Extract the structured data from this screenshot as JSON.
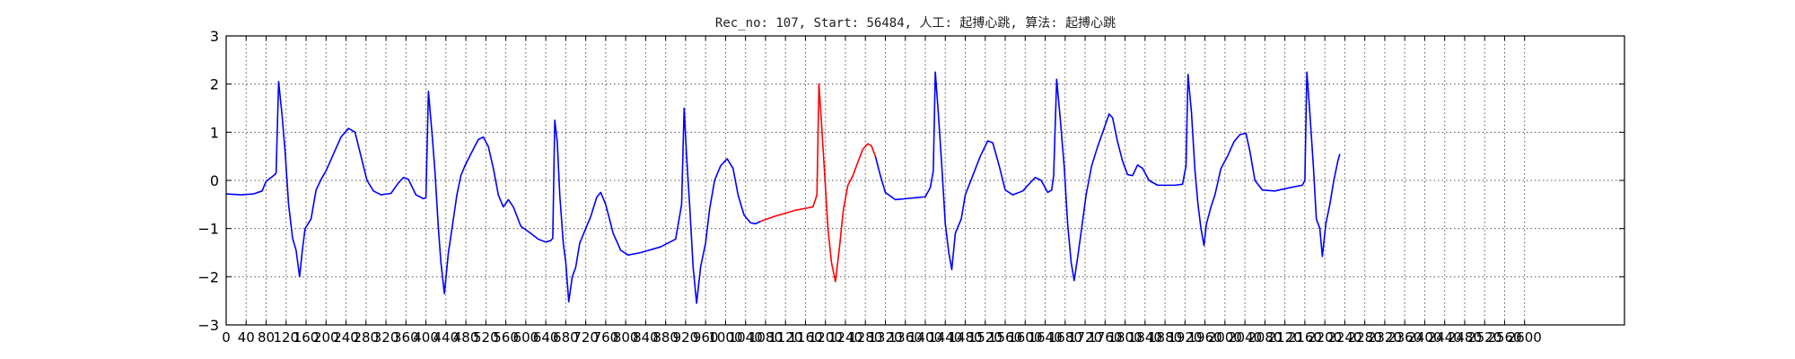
{
  "chart_data": {
    "type": "line",
    "title": "Rec_no: 107, Start: 56484, 人工: 起搏心跳, 算法: 起搏心跳",
    "xlabel": "",
    "ylabel": "",
    "xlim": [
      0,
      2800
    ],
    "ylim": [
      -3,
      3
    ],
    "grid": true,
    "yticks": [
      3,
      2,
      1,
      0,
      -1,
      -2,
      -3
    ],
    "ytick_labels": [
      "3",
      "2",
      "1",
      "0",
      "−1",
      "−2",
      "−3"
    ],
    "xtick_step": 40,
    "xtick_max": 2600,
    "colors": {
      "normal": "#0000ff",
      "highlight": "#ff0000",
      "axis": "#000000"
    },
    "series": [
      {
        "color": "normal",
        "points": [
          [
            0,
            -0.28
          ],
          [
            30,
            -0.3
          ],
          [
            55,
            -0.28
          ],
          [
            72,
            -0.22
          ],
          [
            80,
            -0.02
          ],
          [
            90,
            0.06
          ],
          [
            95,
            0.1
          ],
          [
            100,
            0.15
          ],
          [
            105,
            2.05
          ],
          [
            112,
            1.35
          ],
          [
            118,
            0.6
          ],
          [
            125,
            -0.5
          ],
          [
            133,
            -1.2
          ],
          [
            140,
            -1.45
          ],
          [
            147,
            -2.0
          ],
          [
            152,
            -1.5
          ],
          [
            158,
            -1.0
          ],
          [
            170,
            -0.8
          ],
          [
            180,
            -0.2
          ],
          [
            190,
            0.02
          ],
          [
            200,
            0.2
          ],
          [
            215,
            0.55
          ],
          [
            230,
            0.9
          ],
          [
            245,
            1.08
          ],
          [
            258,
            1.0
          ],
          [
            270,
            0.5
          ],
          [
            282,
            0.0
          ],
          [
            295,
            -0.22
          ],
          [
            310,
            -0.3
          ],
          [
            330,
            -0.27
          ],
          [
            345,
            -0.05
          ],
          [
            355,
            0.06
          ],
          [
            365,
            0.02
          ],
          [
            380,
            -0.3
          ],
          [
            395,
            -0.38
          ],
          [
            400,
            -0.36
          ],
          [
            405,
            1.85
          ],
          [
            412,
            1.0
          ],
          [
            418,
            0.2
          ],
          [
            425,
            -1.0
          ],
          [
            430,
            -1.7
          ],
          [
            437,
            -2.35
          ],
          [
            445,
            -1.5
          ],
          [
            455,
            -0.8
          ],
          [
            462,
            -0.3
          ],
          [
            470,
            0.1
          ],
          [
            478,
            0.3
          ],
          [
            490,
            0.55
          ],
          [
            505,
            0.85
          ],
          [
            515,
            0.9
          ],
          [
            525,
            0.7
          ],
          [
            535,
            0.25
          ],
          [
            545,
            -0.3
          ],
          [
            555,
            -0.55
          ],
          [
            565,
            -0.4
          ],
          [
            575,
            -0.55
          ],
          [
            590,
            -0.95
          ],
          [
            610,
            -1.1
          ],
          [
            625,
            -1.22
          ],
          [
            640,
            -1.28
          ],
          [
            650,
            -1.25
          ],
          [
            654,
            -1.2
          ],
          [
            658,
            1.25
          ],
          [
            663,
            0.8
          ],
          [
            668,
            -0.3
          ],
          [
            675,
            -1.3
          ],
          [
            680,
            -1.7
          ],
          [
            686,
            -2.52
          ],
          [
            693,
            -2.0
          ],
          [
            700,
            -1.8
          ],
          [
            708,
            -1.3
          ],
          [
            718,
            -1.05
          ],
          [
            730,
            -0.75
          ],
          [
            742,
            -0.35
          ],
          [
            750,
            -0.25
          ],
          [
            760,
            -0.5
          ],
          [
            775,
            -1.1
          ],
          [
            790,
            -1.45
          ],
          [
            805,
            -1.55
          ],
          [
            830,
            -1.5
          ],
          [
            870,
            -1.38
          ],
          [
            900,
            -1.22
          ],
          [
            912,
            -0.5
          ],
          [
            917,
            1.5
          ],
          [
            922,
            0.5
          ],
          [
            928,
            -0.5
          ],
          [
            935,
            -1.8
          ],
          [
            942,
            -2.55
          ],
          [
            950,
            -1.8
          ],
          [
            960,
            -1.3
          ],
          [
            968,
            -0.6
          ],
          [
            978,
            0.0
          ],
          [
            990,
            0.3
          ],
          [
            1003,
            0.45
          ],
          [
            1015,
            0.25
          ],
          [
            1025,
            -0.3
          ],
          [
            1037,
            -0.72
          ],
          [
            1050,
            -0.88
          ],
          [
            1060,
            -0.9
          ],
          [
            1068,
            -0.86
          ],
          [
            1070,
            -0.85
          ]
        ]
      },
      {
        "color": "highlight",
        "points": [
          [
            1070,
            -0.85
          ],
          [
            1100,
            -0.74
          ],
          [
            1140,
            -0.62
          ],
          [
            1175,
            -0.55
          ],
          [
            1183,
            -0.3
          ],
          [
            1187,
            2.0
          ],
          [
            1192,
            1.2
          ],
          [
            1198,
            0.2
          ],
          [
            1205,
            -1.0
          ],
          [
            1212,
            -1.7
          ],
          [
            1220,
            -2.1
          ],
          [
            1228,
            -1.4
          ],
          [
            1236,
            -0.6
          ],
          [
            1245,
            -0.1
          ],
          [
            1255,
            0.1
          ],
          [
            1265,
            0.38
          ],
          [
            1275,
            0.65
          ],
          [
            1285,
            0.76
          ],
          [
            1292,
            0.72
          ],
          [
            1300,
            0.5
          ]
        ]
      },
      {
        "color": "normal",
        "points": [
          [
            1300,
            0.5
          ],
          [
            1310,
            0.1
          ],
          [
            1320,
            -0.25
          ],
          [
            1340,
            -0.4
          ],
          [
            1370,
            -0.37
          ],
          [
            1400,
            -0.34
          ],
          [
            1410,
            -0.15
          ],
          [
            1416,
            0.2
          ],
          [
            1420,
            2.25
          ],
          [
            1426,
            1.4
          ],
          [
            1433,
            0.3
          ],
          [
            1440,
            -0.9
          ],
          [
            1447,
            -1.5
          ],
          [
            1453,
            -1.85
          ],
          [
            1460,
            -1.1
          ],
          [
            1472,
            -0.8
          ],
          [
            1480,
            -0.3
          ],
          [
            1495,
            0.1
          ],
          [
            1510,
            0.5
          ],
          [
            1525,
            0.82
          ],
          [
            1535,
            0.78
          ],
          [
            1548,
            0.3
          ],
          [
            1560,
            -0.2
          ],
          [
            1575,
            -0.3
          ],
          [
            1595,
            -0.22
          ],
          [
            1610,
            -0.05
          ],
          [
            1620,
            0.06
          ],
          [
            1632,
            0.0
          ],
          [
            1645,
            -0.25
          ],
          [
            1653,
            -0.2
          ],
          [
            1657,
            0.1
          ],
          [
            1663,
            2.1
          ],
          [
            1670,
            1.3
          ],
          [
            1678,
            0.3
          ],
          [
            1685,
            -0.9
          ],
          [
            1692,
            -1.7
          ],
          [
            1698,
            -2.08
          ],
          [
            1705,
            -1.6
          ],
          [
            1713,
            -1.0
          ],
          [
            1722,
            -0.3
          ],
          [
            1733,
            0.3
          ],
          [
            1745,
            0.7
          ],
          [
            1757,
            1.05
          ],
          [
            1768,
            1.38
          ],
          [
            1775,
            1.3
          ],
          [
            1785,
            0.8
          ],
          [
            1795,
            0.4
          ],
          [
            1805,
            0.12
          ],
          [
            1815,
            0.1
          ],
          [
            1825,
            0.32
          ],
          [
            1835,
            0.25
          ],
          [
            1848,
            0.0
          ],
          [
            1865,
            -0.1
          ],
          [
            1900,
            -0.1
          ],
          [
            1915,
            -0.08
          ],
          [
            1922,
            0.3
          ],
          [
            1926,
            2.2
          ],
          [
            1933,
            1.4
          ],
          [
            1940,
            0.2
          ],
          [
            1946,
            -0.5
          ],
          [
            1952,
            -1.0
          ],
          [
            1958,
            -1.35
          ],
          [
            1963,
            -0.9
          ],
          [
            1972,
            -0.55
          ],
          [
            1980,
            -0.3
          ],
          [
            1992,
            0.25
          ],
          [
            2005,
            0.5
          ],
          [
            2018,
            0.8
          ],
          [
            2030,
            0.95
          ],
          [
            2042,
            0.98
          ],
          [
            2050,
            0.6
          ],
          [
            2060,
            0.0
          ],
          [
            2075,
            -0.2
          ],
          [
            2100,
            -0.22
          ],
          [
            2130,
            -0.15
          ],
          [
            2155,
            -0.1
          ],
          [
            2160,
            0.0
          ],
          [
            2164,
            2.25
          ],
          [
            2170,
            1.4
          ],
          [
            2177,
            0.3
          ],
          [
            2183,
            -0.8
          ],
          [
            2190,
            -1.0
          ],
          [
            2195,
            -1.58
          ],
          [
            2202,
            -0.9
          ],
          [
            2210,
            -0.5
          ],
          [
            2218,
            0.0
          ],
          [
            2226,
            0.4
          ],
          [
            2230,
            0.55
          ]
        ]
      }
    ]
  }
}
